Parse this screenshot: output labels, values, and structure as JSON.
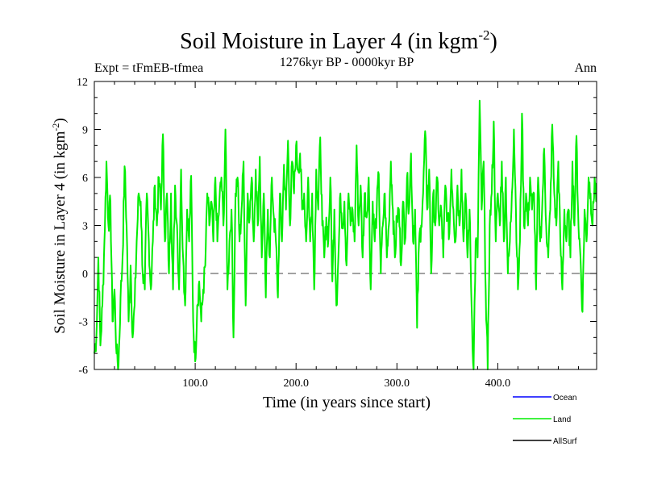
{
  "chart_data": {
    "type": "line",
    "title": "Soil Moisture in Layer 4 (in kgm",
    "title_sup": "-2",
    "title_end": ")",
    "subtitle": "1276kyr BP - 0000kyr BP",
    "expt_label": "Expt = tFmEB-tfmea",
    "season_label": "Ann",
    "xlabel": "Time (in years since start)",
    "ylabel": "Soil Moisture in Layer 4 (in kgm",
    "ylabel_sup": "-2",
    "ylabel_end": ")",
    "xlim": [
      0,
      498
    ],
    "ylim": [
      -6,
      12
    ],
    "x_ticks": [
      100,
      200,
      300,
      400
    ],
    "x_tick_labels": [
      "100.0",
      "200.0",
      "300.0",
      "400.0"
    ],
    "y_ticks": [
      -6,
      -3,
      0,
      3,
      6,
      9,
      12
    ],
    "y_tick_labels": [
      "-6",
      "-3",
      "0",
      "3",
      "6",
      "9",
      "12"
    ],
    "zero_line": 0,
    "series_land_keypoints": [
      [
        0,
        -5
      ],
      [
        2,
        -4
      ],
      [
        4,
        1
      ],
      [
        6,
        -4.5
      ],
      [
        8,
        -2
      ],
      [
        10,
        2
      ],
      [
        12,
        7
      ],
      [
        14,
        3
      ],
      [
        16,
        4.5
      ],
      [
        18,
        -3
      ],
      [
        20,
        -1
      ],
      [
        22,
        -5
      ],
      [
        24,
        -5.8
      ],
      [
        26,
        -1.5
      ],
      [
        28,
        1
      ],
      [
        30,
        6.7
      ],
      [
        32,
        3
      ],
      [
        34,
        -3
      ],
      [
        36,
        0.5
      ],
      [
        38,
        -4
      ],
      [
        40,
        -2
      ],
      [
        42,
        2
      ],
      [
        44,
        5
      ],
      [
        46,
        4.5
      ],
      [
        48,
        0
      ],
      [
        50,
        -1
      ],
      [
        52,
        5
      ],
      [
        54,
        2
      ],
      [
        56,
        -1
      ],
      [
        58,
        2
      ],
      [
        60,
        5.5
      ],
      [
        62,
        3
      ],
      [
        64,
        6
      ],
      [
        66,
        4
      ],
      [
        68,
        8.7
      ],
      [
        70,
        2
      ],
      [
        72,
        5
      ],
      [
        74,
        0
      ],
      [
        76,
        5
      ],
      [
        78,
        -1
      ],
      [
        80,
        5.5
      ],
      [
        82,
        3
      ],
      [
        84,
        -1
      ],
      [
        86,
        6.5
      ],
      [
        88,
        1
      ],
      [
        90,
        -2
      ],
      [
        92,
        4
      ],
      [
        94,
        2
      ],
      [
        96,
        6.1
      ],
      [
        98,
        -3
      ],
      [
        100,
        -5.5
      ],
      [
        102,
        -2
      ],
      [
        104,
        -0.5
      ],
      [
        106,
        -3
      ],
      [
        108,
        -1
      ],
      [
        110,
        0.5
      ],
      [
        112,
        5
      ],
      [
        114,
        3
      ],
      [
        116,
        4.5
      ],
      [
        118,
        2
      ],
      [
        120,
        6
      ],
      [
        122,
        2
      ],
      [
        124,
        4.5
      ],
      [
        126,
        6
      ],
      [
        128,
        3
      ],
      [
        130,
        9
      ],
      [
        132,
        -1
      ],
      [
        134,
        2
      ],
      [
        136,
        4
      ],
      [
        138,
        -4
      ],
      [
        140,
        5
      ],
      [
        142,
        6
      ],
      [
        144,
        2
      ],
      [
        146,
        4
      ],
      [
        148,
        7
      ],
      [
        150,
        -2
      ],
      [
        152,
        5
      ],
      [
        154,
        3.5
      ],
      [
        156,
        6
      ],
      [
        158,
        2
      ],
      [
        160,
        6.5
      ],
      [
        162,
        3
      ],
      [
        164,
        7.3
      ],
      [
        166,
        1
      ],
      [
        168,
        5
      ],
      [
        170,
        -1.5
      ],
      [
        172,
        4
      ],
      [
        174,
        1
      ],
      [
        176,
        6
      ],
      [
        178,
        3.5
      ],
      [
        180,
        2
      ],
      [
        182,
        -1.5
      ],
      [
        184,
        5
      ],
      [
        186,
        2
      ],
      [
        188,
        6.8
      ],
      [
        190,
        4
      ],
      [
        192,
        8.3
      ],
      [
        194,
        3
      ],
      [
        196,
        7
      ],
      [
        198,
        5
      ],
      [
        200,
        8
      ],
      [
        202,
        6.5
      ],
      [
        204,
        7.5
      ],
      [
        206,
        4
      ],
      [
        208,
        5
      ],
      [
        210,
        2
      ],
      [
        212,
        6
      ],
      [
        214,
        2
      ],
      [
        216,
        5
      ],
      [
        218,
        -1
      ],
      [
        220,
        6.5
      ],
      [
        222,
        4
      ],
      [
        224,
        8.5
      ],
      [
        226,
        3
      ],
      [
        228,
        1
      ],
      [
        230,
        3.5
      ],
      [
        232,
        2
      ],
      [
        234,
        6
      ],
      [
        236,
        -0.5
      ],
      [
        238,
        4
      ],
      [
        240,
        -2
      ],
      [
        242,
        1
      ],
      [
        244,
        5
      ],
      [
        246,
        3
      ],
      [
        248,
        4.5
      ],
      [
        250,
        0.5
      ],
      [
        252,
        5
      ],
      [
        254,
        3
      ],
      [
        256,
        4
      ],
      [
        258,
        2
      ],
      [
        260,
        8
      ],
      [
        262,
        3
      ],
      [
        264,
        5.5
      ],
      [
        266,
        1
      ],
      [
        268,
        5
      ],
      [
        270,
        3.5
      ],
      [
        272,
        6
      ],
      [
        274,
        -1
      ],
      [
        276,
        4.5
      ],
      [
        278,
        2
      ],
      [
        280,
        4
      ],
      [
        282,
        6.2
      ],
      [
        284,
        0
      ],
      [
        286,
        3
      ],
      [
        288,
        5
      ],
      [
        290,
        1
      ],
      [
        292,
        3
      ],
      [
        294,
        7
      ],
      [
        296,
        4
      ],
      [
        298,
        1
      ],
      [
        300,
        3.5
      ],
      [
        302,
        4
      ],
      [
        304,
        0.5
      ],
      [
        306,
        4.5
      ],
      [
        308,
        2
      ],
      [
        310,
        6
      ],
      [
        312,
        4
      ],
      [
        314,
        7.5
      ],
      [
        316,
        2
      ],
      [
        318,
        4
      ],
      [
        320,
        -3.4
      ],
      [
        322,
        2
      ],
      [
        324,
        3
      ],
      [
        326,
        5
      ],
      [
        328,
        8.9
      ],
      [
        330,
        4
      ],
      [
        332,
        6.5
      ],
      [
        334,
        0
      ],
      [
        336,
        5
      ],
      [
        338,
        3
      ],
      [
        340,
        6
      ],
      [
        342,
        3
      ],
      [
        344,
        4
      ],
      [
        346,
        1
      ],
      [
        348,
        5.5
      ],
      [
        350,
        3.5
      ],
      [
        352,
        2.5
      ],
      [
        354,
        6.5
      ],
      [
        356,
        4
      ],
      [
        358,
        2
      ],
      [
        360,
        5.5
      ],
      [
        362,
        3
      ],
      [
        364,
        6.5
      ],
      [
        366,
        2
      ],
      [
        368,
        5
      ],
      [
        370,
        1
      ],
      [
        372,
        4
      ],
      [
        374,
        -2
      ],
      [
        376,
        -6
      ],
      [
        378,
        2
      ],
      [
        380,
        1
      ],
      [
        382,
        10.8
      ],
      [
        384,
        4
      ],
      [
        386,
        7
      ],
      [
        388,
        -1
      ],
      [
        390,
        -6
      ],
      [
        392,
        3
      ],
      [
        394,
        5
      ],
      [
        396,
        9.5
      ],
      [
        398,
        2
      ],
      [
        400,
        5
      ],
      [
        402,
        3
      ],
      [
        404,
        7
      ],
      [
        406,
        2
      ],
      [
        408,
        6
      ],
      [
        410,
        0
      ],
      [
        412,
        2
      ],
      [
        414,
        5
      ],
      [
        416,
        9
      ],
      [
        418,
        4
      ],
      [
        420,
        -1
      ],
      [
        422,
        2
      ],
      [
        424,
        10
      ],
      [
        426,
        3
      ],
      [
        428,
        5
      ],
      [
        430,
        3
      ],
      [
        432,
        6
      ],
      [
        434,
        4
      ],
      [
        436,
        5
      ],
      [
        438,
        -1
      ],
      [
        440,
        6
      ],
      [
        442,
        2
      ],
      [
        444,
        4
      ],
      [
        446,
        7.8
      ],
      [
        448,
        3
      ],
      [
        450,
        1
      ],
      [
        452,
        4
      ],
      [
        454,
        9.3
      ],
      [
        456,
        5
      ],
      [
        458,
        3
      ],
      [
        460,
        7
      ],
      [
        462,
        2
      ],
      [
        464,
        -1
      ],
      [
        466,
        4
      ],
      [
        468,
        2
      ],
      [
        470,
        4
      ],
      [
        472,
        1
      ],
      [
        474,
        7
      ],
      [
        476,
        3
      ],
      [
        478,
        8.6
      ],
      [
        480,
        3
      ],
      [
        482,
        1
      ],
      [
        484,
        -2.4
      ],
      [
        486,
        4
      ],
      [
        488,
        2
      ],
      [
        490,
        6
      ],
      [
        492,
        5
      ],
      [
        494,
        3
      ],
      [
        496,
        6
      ],
      [
        498,
        4.5
      ]
    ],
    "series_colors": {
      "Ocean": "#0000ff",
      "Land": "#00ee00",
      "AllSurf": "#000000"
    },
    "legend": [
      {
        "name": "Ocean",
        "color": "#0000ff"
      },
      {
        "name": "Land",
        "color": "#00ee00"
      },
      {
        "name": "AllSurf",
        "color": "#000000"
      }
    ],
    "legend_position": "bottom-right"
  }
}
